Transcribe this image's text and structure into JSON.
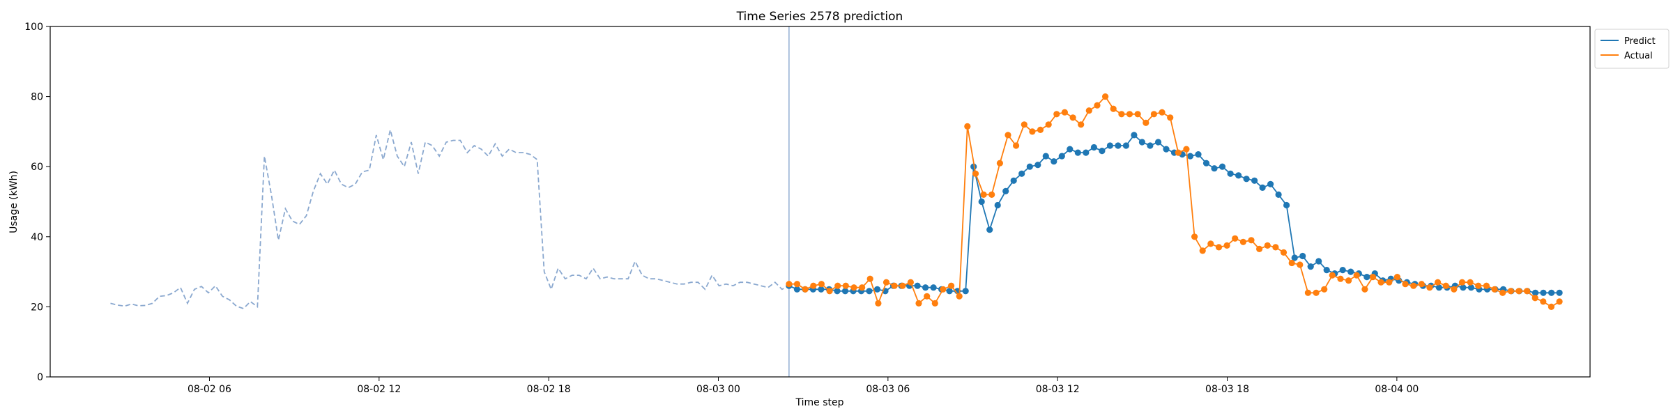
{
  "chart_data": {
    "type": "line",
    "title": "Time Series 2578 prediction",
    "xlabel": "Time step",
    "ylabel": "Usage (kWh)",
    "ylim": [
      0,
      100
    ],
    "yticks": [
      0,
      20,
      40,
      60,
      80,
      100
    ],
    "xlim": [
      "08-02 00:22",
      "08-04 06:50"
    ],
    "xticks": [
      {
        "label": "08-02 06",
        "value": "08-02 06:00"
      },
      {
        "label": "08-02 12",
        "value": "08-02 12:00"
      },
      {
        "label": "08-02 18",
        "value": "08-02 18:00"
      },
      {
        "label": "08-03 00",
        "value": "08-03 00:00"
      },
      {
        "label": "08-03 06",
        "value": "08-03 06:00"
      },
      {
        "label": "08-03 12",
        "value": "08-03 12:00"
      },
      {
        "label": "08-03 18",
        "value": "08-03 18:00"
      },
      {
        "label": "08-04 00",
        "value": "08-04 00:00"
      }
    ],
    "forecast_start": "08-03 02:30",
    "legend_position": "outside-top-right",
    "history": {
      "x_start": "08-02 02:30",
      "x_end": "08-03 02:30",
      "values": [
        21,
        20.5,
        20.2,
        20.8,
        20.3,
        20.4,
        21,
        23,
        23.2,
        24,
        25.5,
        21,
        25,
        25.8,
        24,
        26,
        23,
        22,
        20.2,
        19.5,
        21.5,
        20,
        63,
        52,
        39,
        48,
        44.5,
        43.5,
        46,
        53,
        58,
        55,
        59,
        55,
        54,
        55,
        58.5,
        59,
        69,
        62,
        70.5,
        63,
        60,
        67,
        58,
        67,
        66,
        63,
        67,
        67.5,
        67.5,
        64,
        66,
        65,
        63,
        66.5,
        63,
        65,
        64,
        64,
        63.5,
        62,
        30,
        25,
        31,
        28,
        29,
        29,
        28,
        31,
        28,
        28.5,
        28,
        28,
        28,
        33,
        29,
        28,
        28,
        27.5,
        27,
        26.5,
        26.5,
        27,
        27,
        25,
        29,
        26,
        26.5,
        26,
        27,
        27,
        26.5,
        26,
        25.5,
        27,
        25,
        26
      ]
    },
    "series": [
      {
        "name": "Predict",
        "color": "#1f77b4",
        "x_start": "08-03 02:30",
        "x_end": "08-04 05:45",
        "values": [
          26,
          25,
          25,
          25,
          25,
          25,
          24.5,
          24.5,
          24.5,
          24.5,
          24.5,
          25,
          24.5,
          26,
          26,
          26,
          26,
          25.5,
          25.5,
          25,
          24.5,
          24.5,
          24.5,
          60,
          50,
          42,
          49,
          53,
          56,
          58,
          60,
          60.5,
          63,
          61.5,
          63,
          65,
          64,
          64,
          65.5,
          64.5,
          66,
          66,
          66,
          69,
          67,
          66,
          67,
          65,
          64,
          63.5,
          63,
          63.5,
          61,
          59.5,
          60,
          58,
          57.5,
          56.5,
          56,
          54,
          55,
          52,
          49,
          34,
          34.5,
          31.5,
          33,
          30.5,
          29.5,
          30.5,
          30,
          29.5,
          28.5,
          29.5,
          27.5,
          28,
          27.5,
          27,
          26.5,
          26,
          26,
          25.5,
          25.5,
          26,
          25.5,
          25.5,
          25,
          25,
          25,
          25,
          24.5,
          24.5,
          24.5,
          24,
          24,
          24,
          24
        ]
      },
      {
        "name": "Actual",
        "color": "#ff7f0e",
        "x_start": "08-03 02:30",
        "x_end": "08-04 05:45",
        "values": [
          26.5,
          26.5,
          25,
          26,
          26.5,
          24.5,
          26,
          26,
          25.5,
          25.5,
          28,
          21,
          27,
          26,
          26,
          27,
          21,
          23,
          21,
          25,
          26,
          23,
          71.5,
          58,
          52,
          52,
          61,
          69,
          66,
          72,
          70,
          70.5,
          72,
          75,
          75.5,
          74,
          72,
          76,
          77.5,
          80,
          76.5,
          75,
          75,
          75,
          72.5,
          75,
          75.5,
          74,
          64,
          65,
          40,
          36,
          38,
          37,
          37.5,
          39.5,
          38.5,
          39,
          36.5,
          37.5,
          37,
          35.5,
          32.5,
          32,
          24,
          24,
          25,
          29,
          28,
          27.5,
          29,
          25,
          28.5,
          27,
          27,
          28.5,
          26.5,
          26,
          26.5,
          25.5,
          27,
          26,
          25,
          27,
          27,
          26,
          26,
          25,
          24,
          24.5,
          24.5,
          24.5,
          22.5,
          21.5,
          20,
          21.5
        ]
      }
    ]
  }
}
